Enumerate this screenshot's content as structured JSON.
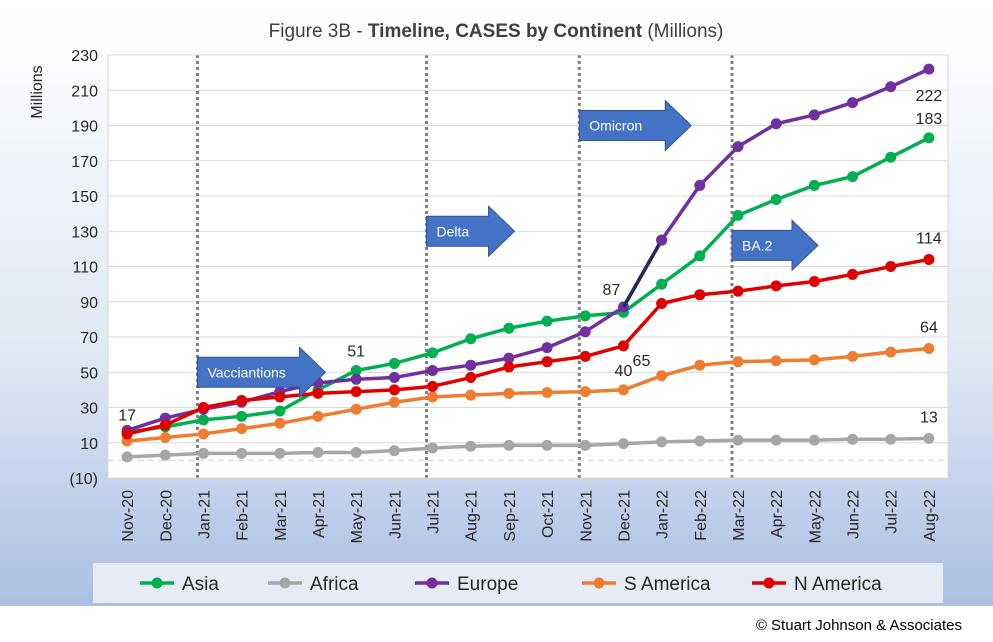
{
  "chart_data": {
    "type": "line",
    "title_prefix": "Figure 3B - ",
    "title_bold": "Timeline, CASES by Continent",
    "title_suffix": " (Millions)",
    "ylabel": "Millions",
    "ylim": [
      -10,
      230
    ],
    "yticks": [
      "230",
      "210",
      "190",
      "170",
      "150",
      "130",
      "110",
      "90",
      "70",
      "50",
      "30",
      "10",
      "(10)"
    ],
    "ytick_values": [
      230,
      210,
      190,
      170,
      150,
      130,
      110,
      90,
      70,
      50,
      30,
      10,
      -10
    ],
    "categories": [
      "Nov-20",
      "Dec-20",
      "Jan-21",
      "Feb-21",
      "Mar-21",
      "Apr-21",
      "May-21",
      "Jun-21",
      "Jul-21",
      "Aug-21",
      "Sep-21",
      "Oct-21",
      "Nov-21",
      "Dec-21",
      "Jan-22",
      "Feb-22",
      "Mar-22",
      "Apr-22",
      "May-22",
      "Jun-22",
      "Jul-22",
      "Aug-22"
    ],
    "series": [
      {
        "name": "Asia",
        "color": "#00b050",
        "values": [
          16,
          19,
          23,
          25,
          28,
          40,
          51,
          55,
          61,
          69,
          75,
          79,
          82,
          84,
          100,
          116,
          139,
          148,
          156,
          161,
          172,
          183
        ]
      },
      {
        "name": "Africa",
        "color": "#a6a6a6",
        "values": [
          2,
          3,
          4,
          4,
          4,
          4.5,
          4.5,
          5.5,
          7,
          8,
          8.5,
          8.5,
          8.5,
          9.5,
          10.5,
          11,
          11.5,
          11.5,
          11.5,
          12,
          12,
          12.5
        ]
      },
      {
        "name": "Europe",
        "color": "#7030a0",
        "values": [
          17,
          24,
          29,
          33,
          39,
          44,
          46,
          47,
          51,
          54,
          58,
          64,
          73,
          87,
          125,
          156,
          178,
          191,
          196,
          203,
          212,
          222
        ]
      },
      {
        "name": "S America",
        "color": "#ed7d31",
        "values": [
          11,
          13,
          15,
          18,
          21,
          25,
          29,
          33,
          36,
          37,
          38,
          38.5,
          39,
          40,
          48,
          54,
          56,
          56.5,
          57,
          59,
          61.5,
          63.5
        ]
      },
      {
        "name": "N America",
        "color": "#e00000",
        "values": [
          15,
          20,
          30,
          34,
          36,
          38,
          39,
          40,
          42,
          47,
          53,
          56,
          59,
          65,
          89,
          94,
          96,
          99,
          101.5,
          105.5,
          110,
          114
        ]
      }
    ],
    "highlight_segment": {
      "color": "#1f2d5a",
      "from_series": "Europe",
      "from_index": 13,
      "to_index": 14
    },
    "data_labels": [
      {
        "text": "17",
        "series": "Europe",
        "index": 0
      },
      {
        "text": "51",
        "series": "Asia",
        "index": 6
      },
      {
        "text": "87",
        "series": "Europe",
        "index": 13
      },
      {
        "text": "40",
        "series": "S America",
        "index": 13
      },
      {
        "text": "65",
        "series": "N America",
        "index": 13
      },
      {
        "text": "222",
        "series": "Europe",
        "index": 21
      },
      {
        "text": "183",
        "series": "Asia",
        "index": 21
      },
      {
        "text": "114",
        "series": "N America",
        "index": 21
      },
      {
        "text": "64",
        "series": "S America",
        "index": 21
      },
      {
        "text": "13",
        "series": "Africa",
        "index": 21
      }
    ],
    "vertical_markers": [
      "Jan-21",
      "Jul-21",
      "Nov-21",
      "Mar-22"
    ],
    "annotations": [
      {
        "text": "Vacciantions",
        "index": 2,
        "value": 50
      },
      {
        "text": "Delta",
        "index": 8,
        "value": 130
      },
      {
        "text": "Omicron",
        "index": 12,
        "value": 190
      },
      {
        "text": "BA.2",
        "index": 16,
        "value": 122
      }
    ],
    "grid": true,
    "legend_position": "bottom"
  },
  "colors": {
    "arrow_fill": "#4472c4",
    "arrow_stroke": "#2f5597",
    "grid": "#d9d9d9",
    "axis_zero": "#ffffff"
  },
  "copyright": "© Stuart Johnson & Associates"
}
